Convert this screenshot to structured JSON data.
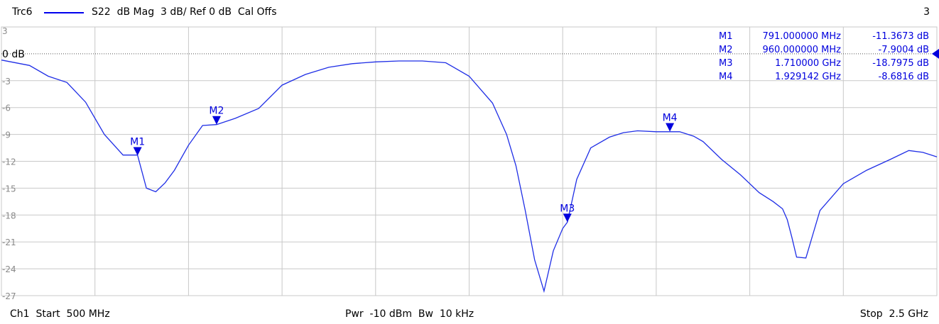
{
  "header": {
    "trace_name": "Trc6",
    "trace_desc": "S22  dB Mag  3 dB/ Ref 0 dB  Cal Offs",
    "channel_number": "3"
  },
  "footer": {
    "left": "Ch1  Start  500 MHz",
    "center": "Pwr  -10 dBm  Bw  10 kHz",
    "right": "Stop  2.5 GHz"
  },
  "colors": {
    "trace": "#1f2ee6",
    "marker": "#0000dd",
    "grid": "#c8c8c8",
    "ref_line": "#505050"
  },
  "chart_data": {
    "type": "line",
    "xlim": [
      500,
      2500
    ],
    "x_unit": "MHz",
    "ylim": [
      -27,
      3
    ],
    "y_ticks": [
      "3",
      "0 dB",
      "-3",
      "-6",
      "-9",
      "-12",
      "-15",
      "-18",
      "-21",
      "-24",
      "-27"
    ],
    "y_tick_values": [
      3,
      0,
      -3,
      -6,
      -9,
      -12,
      -15,
      -18,
      -21,
      -24,
      -27
    ],
    "reference_level": 0,
    "x_grid_divisions": 10,
    "series": [
      {
        "name": "S22",
        "x": [
          500,
          560,
          600,
          640,
          680,
          720,
          760,
          791,
          810,
          830,
          850,
          870,
          900,
          930,
          960,
          1000,
          1050,
          1100,
          1150,
          1200,
          1250,
          1300,
          1350,
          1400,
          1450,
          1500,
          1550,
          1580,
          1600,
          1620,
          1640,
          1660,
          1680,
          1700,
          1710,
          1730,
          1760,
          1800,
          1830,
          1860,
          1900,
          1929,
          1950,
          1980,
          2000,
          2040,
          2080,
          2120,
          2150,
          2170,
          2180,
          2190,
          2200,
          2220,
          2250,
          2300,
          2350,
          2400,
          2440,
          2470,
          2500
        ],
        "y": [
          -0.7,
          -1.3,
          -2.5,
          -3.2,
          -5.4,
          -9.0,
          -11.3,
          -11.3,
          -15.0,
          -15.4,
          -14.4,
          -13.0,
          -10.2,
          -8.0,
          -7.9,
          -7.2,
          -6.1,
          -3.5,
          -2.3,
          -1.5,
          -1.1,
          -0.9,
          -0.8,
          -0.8,
          -1.0,
          -2.5,
          -5.5,
          -9.0,
          -12.5,
          -17.5,
          -23.0,
          -26.5,
          -22.0,
          -19.5,
          -18.8,
          -14.0,
          -10.5,
          -9.3,
          -8.8,
          -8.6,
          -8.7,
          -8.7,
          -8.7,
          -9.2,
          -9.8,
          -11.8,
          -13.5,
          -15.5,
          -16.5,
          -17.3,
          -18.5,
          -20.5,
          -22.7,
          -22.8,
          -17.5,
          -14.5,
          -13.0,
          -11.8,
          -10.8,
          -11.0,
          -11.5
        ]
      }
    ],
    "markers": [
      {
        "label": "M1",
        "x": 791,
        "y": -11.3673,
        "freq_text": "791.000000 MHz",
        "value_text": "-11.3673 dB"
      },
      {
        "label": "M2",
        "x": 960,
        "y": -7.9004,
        "freq_text": "960.000000 MHz",
        "value_text": "-7.9004 dB"
      },
      {
        "label": "M3",
        "x": 1710,
        "y": -18.7975,
        "freq_text": "1.710000 GHz",
        "value_text": "-18.7975 dB"
      },
      {
        "label": "M4",
        "x": 1929.142,
        "y": -8.6816,
        "freq_text": "1.929142 GHz",
        "value_text": "-8.6816 dB"
      }
    ]
  }
}
